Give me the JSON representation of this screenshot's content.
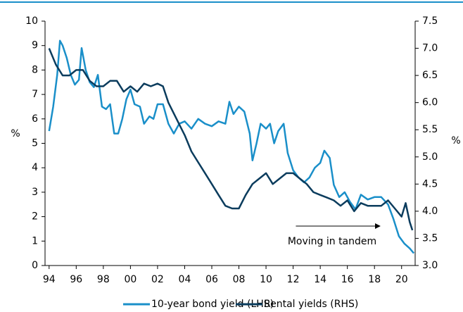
{
  "chart_data": {
    "type": "line",
    "xlim": [
      1993.7,
      2021
    ],
    "xticks": [
      {
        "value": 1994,
        "label": "94"
      },
      {
        "value": 1996,
        "label": "96"
      },
      {
        "value": 1998,
        "label": "98"
      },
      {
        "value": 2000,
        "label": "00"
      },
      {
        "value": 2002,
        "label": "02"
      },
      {
        "value": 2004,
        "label": "04"
      },
      {
        "value": 2006,
        "label": "06"
      },
      {
        "value": 2008,
        "label": "08"
      },
      {
        "value": 2010,
        "label": "10"
      },
      {
        "value": 2012,
        "label": "12"
      },
      {
        "value": 2014,
        "label": "14"
      },
      {
        "value": 2016,
        "label": "16"
      },
      {
        "value": 2018,
        "label": "18"
      },
      {
        "value": 2020,
        "label": "20"
      }
    ],
    "ylim": [
      0,
      10
    ],
    "yticks": [
      0,
      1,
      2,
      3,
      4,
      5,
      6,
      7,
      8,
      9,
      10
    ],
    "ylabel": "%",
    "y2lim": [
      3,
      7.5
    ],
    "y2ticks": [
      {
        "value": 3,
        "label": "3.0"
      },
      3.5,
      {
        "value": 4,
        "label": "4.0"
      },
      4.5,
      {
        "value": 5,
        "label": "5.0"
      },
      5.5,
      {
        "value": 6,
        "label": "6.0"
      },
      6.5,
      {
        "value": 7,
        "label": "7.0"
      },
      7.5
    ],
    "y2label": "%",
    "annotation": "Moving in tandem",
    "series": [
      {
        "name": "10-year bond yield (LHS)",
        "color": "#1a8fc9",
        "x": [
          1994.0,
          1994.3,
          1994.6,
          1994.8,
          1995.0,
          1995.3,
          1995.6,
          1995.9,
          1996.2,
          1996.4,
          1996.7,
          1997.0,
          1997.3,
          1997.6,
          1997.9,
          1998.2,
          1998.5,
          1998.8,
          1999.1,
          1999.4,
          1999.7,
          2000.0,
          2000.3,
          2000.7,
          2001.0,
          2001.4,
          2001.7,
          2002.0,
          2002.4,
          2002.8,
          2003.2,
          2003.6,
          2004.0,
          2004.5,
          2005.0,
          2005.5,
          2006.0,
          2006.5,
          2007.0,
          2007.3,
          2007.6,
          2008.0,
          2008.4,
          2008.8,
          2009.0,
          2009.3,
          2009.6,
          2010.0,
          2010.3,
          2010.6,
          2010.9,
          2011.3,
          2011.6,
          2012.0,
          2012.4,
          2012.8,
          2013.2,
          2013.6,
          2014.0,
          2014.3,
          2014.7,
          2015.0,
          2015.4,
          2015.8,
          2016.2,
          2016.6,
          2017.0,
          2017.5,
          2018.0,
          2018.5,
          2019.0,
          2019.4,
          2019.8,
          2020.2,
          2020.6,
          2020.9
        ],
        "values": [
          5.5,
          6.5,
          7.8,
          9.2,
          9.0,
          8.5,
          7.8,
          7.4,
          7.6,
          8.9,
          8.0,
          7.5,
          7.3,
          7.8,
          6.5,
          6.4,
          6.6,
          5.4,
          5.4,
          6.0,
          6.8,
          7.2,
          6.6,
          6.5,
          5.8,
          6.1,
          6.0,
          6.6,
          6.6,
          5.8,
          5.4,
          5.8,
          5.9,
          5.6,
          6.0,
          5.8,
          5.7,
          5.9,
          5.8,
          6.7,
          6.2,
          6.5,
          6.3,
          5.4,
          4.3,
          5.0,
          5.8,
          5.6,
          5.8,
          5.0,
          5.5,
          5.8,
          4.6,
          3.9,
          3.6,
          3.4,
          3.6,
          4.0,
          4.2,
          4.7,
          4.4,
          3.3,
          2.8,
          3.0,
          2.6,
          2.3,
          2.9,
          2.7,
          2.8,
          2.8,
          2.5,
          1.9,
          1.2,
          0.9,
          0.7,
          0.5
        ]
      },
      {
        "name": "Rental yields (RHS)",
        "color": "#0b3c5d",
        "axis": "y2",
        "x": [
          1994.0,
          1994.5,
          1995.0,
          1995.5,
          1996.0,
          1996.5,
          1997.0,
          1997.5,
          1998.0,
          1998.5,
          1999.0,
          1999.5,
          2000.0,
          2000.5,
          2001.0,
          2001.5,
          2002.0,
          2002.4,
          2002.8,
          2003.2,
          2003.6,
          2004.0,
          2004.5,
          2005.0,
          2005.5,
          2006.0,
          2006.5,
          2007.0,
          2007.5,
          2008.0,
          2008.5,
          2009.0,
          2009.5,
          2010.0,
          2010.5,
          2011.0,
          2011.5,
          2012.0,
          2012.5,
          2013.0,
          2013.5,
          2014.0,
          2014.5,
          2015.0,
          2015.5,
          2016.0,
          2016.5,
          2017.0,
          2017.5,
          2018.0,
          2018.5,
          2019.0,
          2019.5,
          2020.0,
          2020.3,
          2020.6,
          2020.8
        ],
        "values": [
          7.0,
          6.7,
          6.5,
          6.5,
          6.6,
          6.6,
          6.4,
          6.3,
          6.3,
          6.4,
          6.4,
          6.2,
          6.3,
          6.2,
          6.35,
          6.3,
          6.35,
          6.3,
          6.0,
          5.8,
          5.6,
          5.4,
          5.1,
          4.9,
          4.7,
          4.5,
          4.3,
          4.1,
          4.05,
          4.05,
          4.3,
          4.5,
          4.6,
          4.7,
          4.5,
          4.6,
          4.7,
          4.7,
          4.6,
          4.5,
          4.35,
          4.3,
          4.25,
          4.2,
          4.1,
          4.2,
          4.0,
          4.15,
          4.1,
          4.1,
          4.1,
          4.2,
          4.05,
          3.9,
          4.15,
          3.8,
          3.65
        ]
      }
    ]
  }
}
